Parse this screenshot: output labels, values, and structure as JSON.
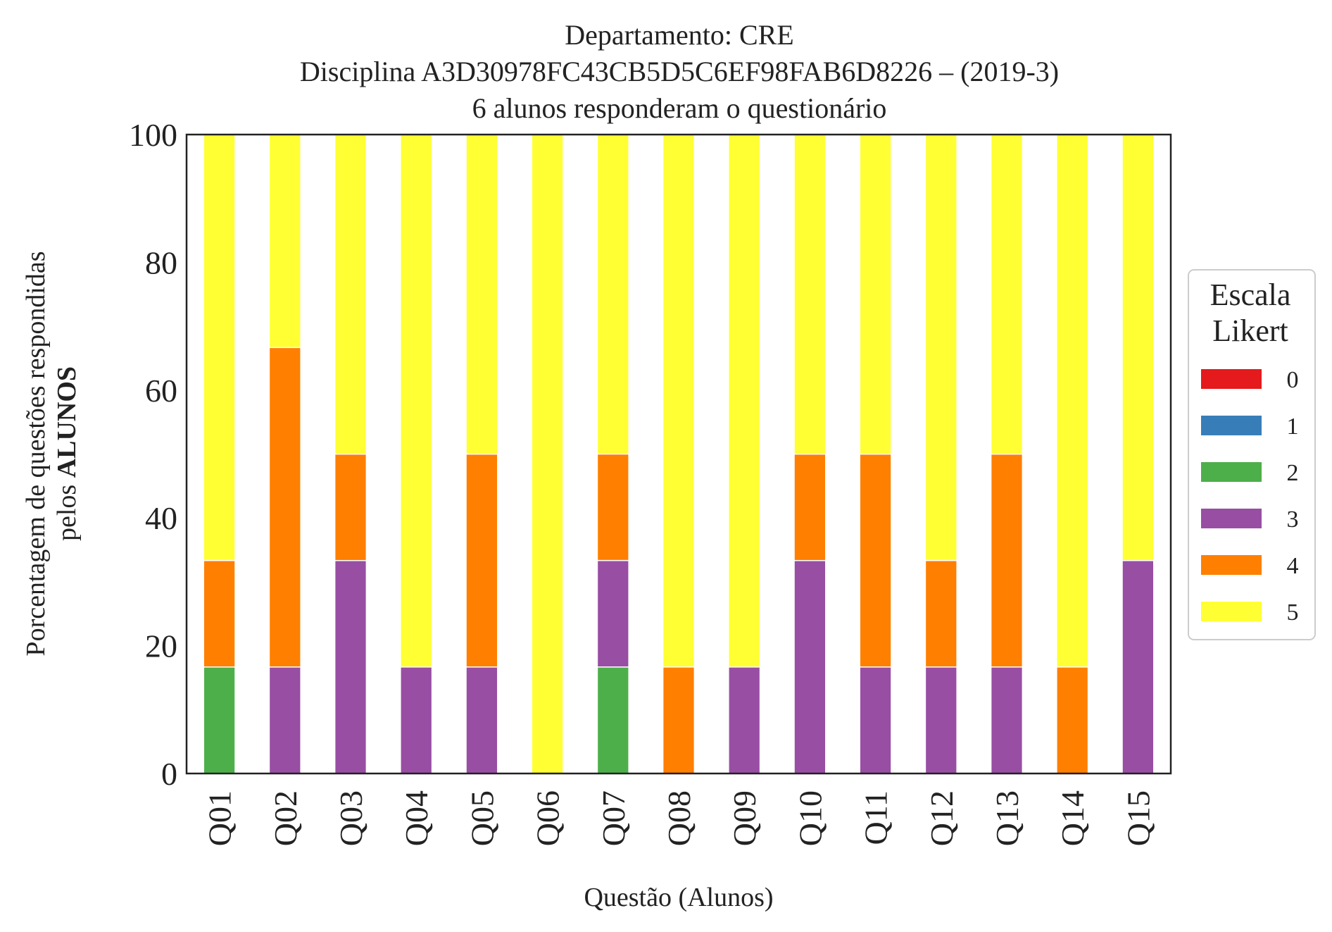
{
  "chart_data": {
    "type": "bar",
    "stacked": true,
    "title_lines": [
      "Departamento: CRE",
      "Disciplina A3D30978FC43CB5D5C6EF98FAB6D8226 – (2019-3)",
      "6 alunos responderam o questionário"
    ],
    "xlabel": "Questão (Alunos)",
    "ylabel_line1": "Porcentagem de questões respondidas",
    "ylabel_line2_prefix": "pelos ",
    "ylabel_line2_bold": "ALUNOS",
    "ylim": [
      0,
      100
    ],
    "yticks": [
      "0",
      "20",
      "40",
      "60",
      "80",
      "100"
    ],
    "grid": false,
    "categories": [
      "Q01",
      "Q02",
      "Q03",
      "Q04",
      "Q05",
      "Q06",
      "Q07",
      "Q08",
      "Q09",
      "Q10",
      "Q11",
      "Q12",
      "Q13",
      "Q14",
      "Q15"
    ],
    "legend": {
      "title_lines": [
        "Escala",
        "Likert"
      ],
      "placement": "right"
    },
    "series": [
      {
        "name": "0",
        "color": "#e41a1c",
        "values": [
          0,
          0,
          0,
          0,
          0,
          0,
          0,
          0,
          0,
          0,
          0,
          0,
          0,
          0,
          0
        ]
      },
      {
        "name": "1",
        "color": "#377eb8",
        "values": [
          0,
          0,
          0,
          0,
          0,
          0,
          0,
          0,
          0,
          0,
          0,
          0,
          0,
          0,
          0
        ]
      },
      {
        "name": "2",
        "color": "#4daf4a",
        "values": [
          16.67,
          0,
          0,
          0,
          0,
          0,
          16.67,
          0,
          0,
          0,
          0,
          0,
          0,
          0,
          0
        ]
      },
      {
        "name": "3",
        "color": "#984ea3",
        "values": [
          0,
          16.67,
          33.33,
          16.67,
          16.67,
          0,
          16.67,
          0,
          16.67,
          33.33,
          16.67,
          16.67,
          16.67,
          0,
          33.33
        ]
      },
      {
        "name": "4",
        "color": "#ff7f00",
        "values": [
          16.67,
          50,
          16.67,
          0,
          33.33,
          0,
          16.67,
          16.67,
          0,
          16.67,
          33.33,
          16.67,
          33.33,
          16.67,
          0
        ]
      },
      {
        "name": "5",
        "color": "#ffff33",
        "values": [
          66.67,
          33.33,
          50,
          83.33,
          50,
          100,
          50,
          83.33,
          83.33,
          50,
          50,
          66.67,
          50,
          83.33,
          66.67
        ]
      }
    ]
  }
}
